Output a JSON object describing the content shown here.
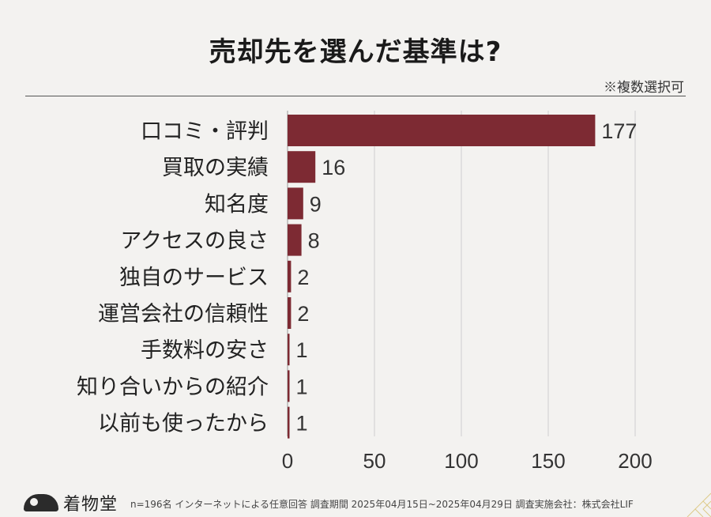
{
  "header": {
    "title": "売却先を選んだ基準は?",
    "note": "※複数選択可"
  },
  "footer": {
    "brand": "着物堂",
    "text": "n=196名 インターネットによる任意回答 調査期間 2025年04月15日~2025年04月29日 調査実施会社：株式会社LIF"
  },
  "colors": {
    "bar": "#7d2a33",
    "grid": "#cfcfcf",
    "background": "#f3f2f0"
  },
  "chart_data": {
    "type": "bar",
    "orientation": "horizontal",
    "categories": [
      "口コミ・評判",
      "買取の実績",
      "知名度",
      "アクセスの良さ",
      "独自のサービス",
      "運営会社の信頼性",
      "手数料の安さ",
      "知り合いからの紹介",
      "以前も使ったから"
    ],
    "values": [
      177,
      16,
      9,
      8,
      2,
      2,
      1,
      1,
      1
    ],
    "xlim": [
      0,
      200
    ],
    "xticks": [
      0,
      50,
      100,
      150,
      200
    ],
    "grid": true,
    "data_labels": true
  }
}
